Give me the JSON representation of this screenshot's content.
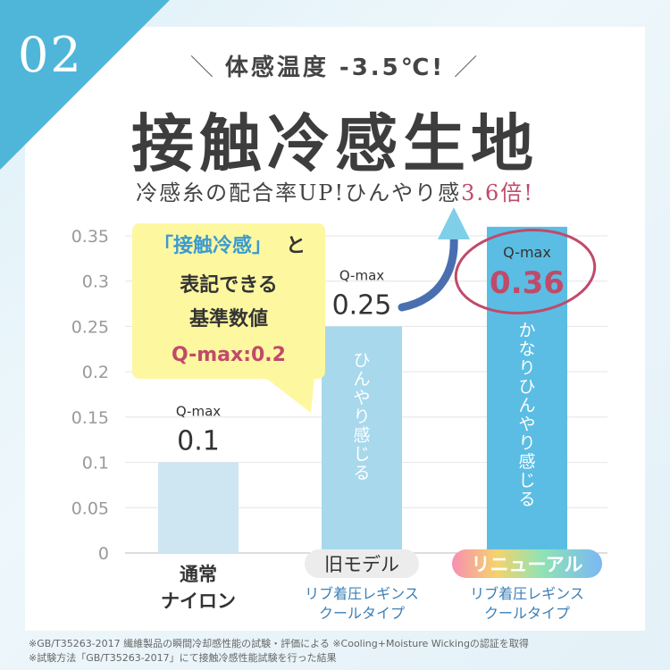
{
  "badge": "02",
  "tagline": "体感温度 -3.5℃!",
  "title": "接触冷感生地",
  "subtitle_main": "冷感糸の配合率UP!ひんやり感",
  "subtitle_accent": "3.6倍!",
  "callout": {
    "line1a": "「接触冷感」",
    "line1b": "と",
    "line2": "表記できる",
    "line3": "基準数値",
    "line4": "Q-max:0.2"
  },
  "chart_data": {
    "type": "bar",
    "ylim": [
      0,
      0.35
    ],
    "yticks": [
      0,
      0.05,
      0.1,
      0.15,
      0.2,
      0.25,
      0.3,
      0.35
    ],
    "ytick_labels": [
      "0",
      "0.05",
      "0.1",
      "0.15",
      "0.2",
      "0.25",
      "0.3",
      "0.35"
    ],
    "bars": [
      {
        "value": 0.1,
        "value_label": "0.1",
        "metric": "Q-max",
        "inner_text": "",
        "tag": "",
        "category": [
          "通常",
          "ナイロン"
        ],
        "color": "#cde6f2"
      },
      {
        "value": 0.25,
        "value_label": "0.25",
        "metric": "Q-max",
        "inner_text": "ひんやり感じる",
        "tag": "旧モデル",
        "category": [
          "リブ着圧レギンス",
          "クールタイプ"
        ],
        "color": "#a8d8ec"
      },
      {
        "value": 0.36,
        "value_label": "0.36",
        "metric": "Q-max",
        "inner_text": "かなりひんやり感じる",
        "tag": "リニューアル",
        "category": [
          "リブ着圧レギンス",
          "クールタイプ"
        ],
        "color": "#5bbde3"
      }
    ]
  },
  "colors": {
    "accent_blue": "#4fb6da",
    "accent_red": "#c04a6a",
    "callout_bg": "#fdf7a0",
    "category_blue": "#3b7fb5"
  },
  "footnotes": [
    "※GB/T35263-2017 繊維製品の瞬間冷却感性能の試験・評価による ※Cooling+Moisture Wickingの認証を取得",
    "※試験方法「GB/T35263-2017」にて接触冷感性能試験を行った結果"
  ]
}
